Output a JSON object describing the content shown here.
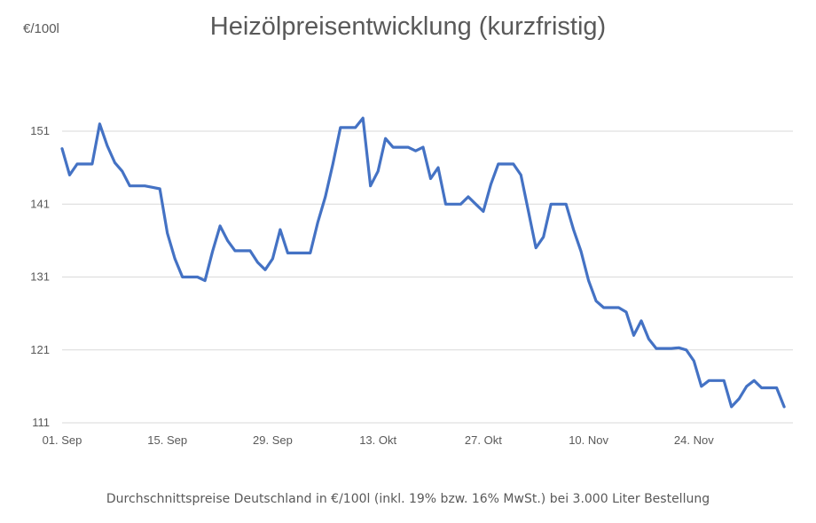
{
  "title": "Heizölpreisentwicklung (kurzfristig)",
  "unit_label": "€/100l",
  "footnote": "Durchschnittspreise Deutschland in €/100l (inkl. 19% bzw. 16%  MwSt.) bei 3.000 Liter Bestellung",
  "colors": {
    "line": "#4472C4",
    "grid": "#D9D9D9",
    "text": "#595959"
  },
  "chart_data": {
    "type": "line",
    "title": "Heizölpreisentwicklung (kurzfristig)",
    "ylabel": "€/100l",
    "xlabel": "",
    "ylim": [
      111,
      151
    ],
    "yticks": [
      111,
      121,
      131,
      141,
      151
    ],
    "xtick_labels": [
      "01. Sep",
      "15. Sep",
      "29. Sep",
      "13. Okt",
      "27. Okt",
      "10. Nov",
      "24. Nov"
    ],
    "xtick_index": [
      0,
      14,
      28,
      42,
      56,
      70,
      84
    ],
    "grid": true,
    "legend": "none",
    "x_start": "01. Sep",
    "values": [
      148.6,
      145.0,
      146.5,
      146.5,
      146.5,
      152.0,
      149.0,
      146.7,
      145.5,
      143.5,
      143.5,
      143.5,
      143.3,
      143.1,
      137.0,
      133.5,
      131.0,
      131.0,
      131.0,
      130.5,
      134.5,
      138.0,
      136.0,
      134.6,
      134.6,
      134.6,
      133.0,
      132.0,
      133.5,
      137.5,
      134.3,
      134.3,
      134.3,
      134.3,
      138.5,
      142.0,
      146.5,
      151.5,
      151.5,
      151.5,
      152.8,
      143.5,
      145.5,
      150.0,
      148.8,
      148.8,
      148.8,
      148.3,
      148.8,
      144.5,
      146.0,
      141.0,
      141.0,
      141.0,
      142.0,
      141.0,
      140.0,
      143.7,
      146.5,
      146.5,
      146.5,
      145.0,
      140.0,
      135.0,
      136.5,
      141.0,
      141.0,
      141.0,
      137.5,
      134.5,
      130.5,
      127.7,
      126.8,
      126.8,
      126.8,
      126.2,
      123.0,
      125.0,
      122.5,
      121.2,
      121.2,
      121.2,
      121.3,
      121.0,
      119.5,
      116.0,
      116.8,
      116.8,
      116.8,
      113.2,
      114.3,
      116.0,
      116.8,
      115.8,
      115.8,
      115.8,
      113.2
    ]
  }
}
